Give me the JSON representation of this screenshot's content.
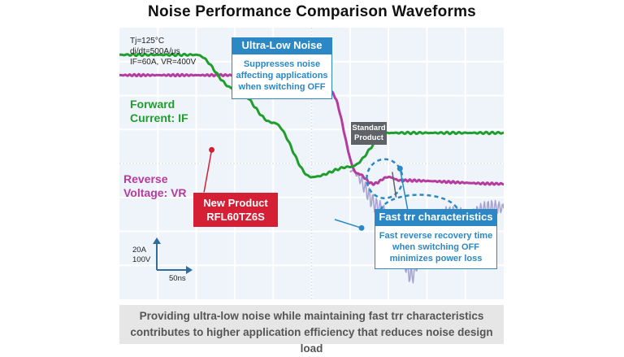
{
  "title": "Noise Performance Comparison Waveforms",
  "conditions": {
    "tj": "Tj=125°C",
    "didt": "di/dt=500A/μs",
    "if_vr": "IF=60A, VR=400V"
  },
  "labels": {
    "forward_line1": "Forward",
    "forward_line2": "Current: IF",
    "reverse_line1": "Reverse",
    "reverse_line2": "Voltage: VR"
  },
  "new_product": {
    "line1": "New Product",
    "line2": "RFL60TZ6S"
  },
  "standard_product": {
    "line1": "Standard",
    "line2": "Product"
  },
  "ultra_low_noise": {
    "heading": "Ultra-Low Noise",
    "line1": "Suppresses noise",
    "line2": "affecting applications",
    "line3": "when switching OFF"
  },
  "fast_trr": {
    "heading": "Fast trr characteristics",
    "line1": "Fast reverse recovery time",
    "line2": "when switching OFF",
    "line3": "minimizes power loss"
  },
  "scale": {
    "current": "20A",
    "voltage": "100V",
    "time": "50ns"
  },
  "bottom_text": {
    "line1": "Providing ultra-low noise while maintaining fast trr characteristics",
    "line2": "contributes to higher application efficiency that reduces noise design load"
  },
  "colors": {
    "forward_current": "#1f9e2e",
    "reverse_voltage": "#b53b9e",
    "standard_product": "#a9a3d1",
    "highlight": "#2b88c5",
    "new_product": "#d41f35"
  },
  "chart_data": {
    "type": "line",
    "title": "Noise Performance Comparison Waveforms",
    "grid": true,
    "grid_divisions": {
      "x": 10,
      "y": 8
    },
    "x_unit": "50ns/div",
    "y_units": [
      "20A/div",
      "100V/div"
    ],
    "series": [
      {
        "name": "Forward Current: IF",
        "kind": "current",
        "points": [
          [
            0,
            3.2
          ],
          [
            2.0,
            3.2
          ],
          [
            3.0,
            2.2
          ],
          [
            4.0,
            1.2
          ],
          [
            5.0,
            -0.4
          ],
          [
            6.0,
            -0.1
          ],
          [
            7.0,
            0.9
          ],
          [
            8.0,
            0.9
          ],
          [
            10.0,
            0.9
          ]
        ]
      },
      {
        "name": "Reverse Voltage: VR",
        "kind": "voltage",
        "points": [
          [
            0,
            2.6
          ],
          [
            4.5,
            2.6
          ],
          [
            5.5,
            2.1
          ],
          [
            6.2,
            -0.3
          ],
          [
            6.6,
            -0.6
          ],
          [
            7.0,
            -0.4
          ],
          [
            7.3,
            -0.5
          ],
          [
            10.0,
            -0.6
          ]
        ]
      },
      {
        "name": "Standard Product",
        "kind": "voltage",
        "points": [
          [
            6.0,
            -0.2
          ],
          [
            6.8,
            -1.3
          ],
          [
            7.3,
            -2.7
          ],
          [
            7.6,
            -3.3
          ],
          [
            8.0,
            -2.0
          ],
          [
            8.5,
            -1.5
          ],
          [
            10.0,
            -1.3
          ]
        ]
      }
    ],
    "annotations": [
      "Ultra-Low Noise",
      "Fast trr characteristics",
      "New Product RFL60TZ6S",
      "Standard Product"
    ]
  }
}
